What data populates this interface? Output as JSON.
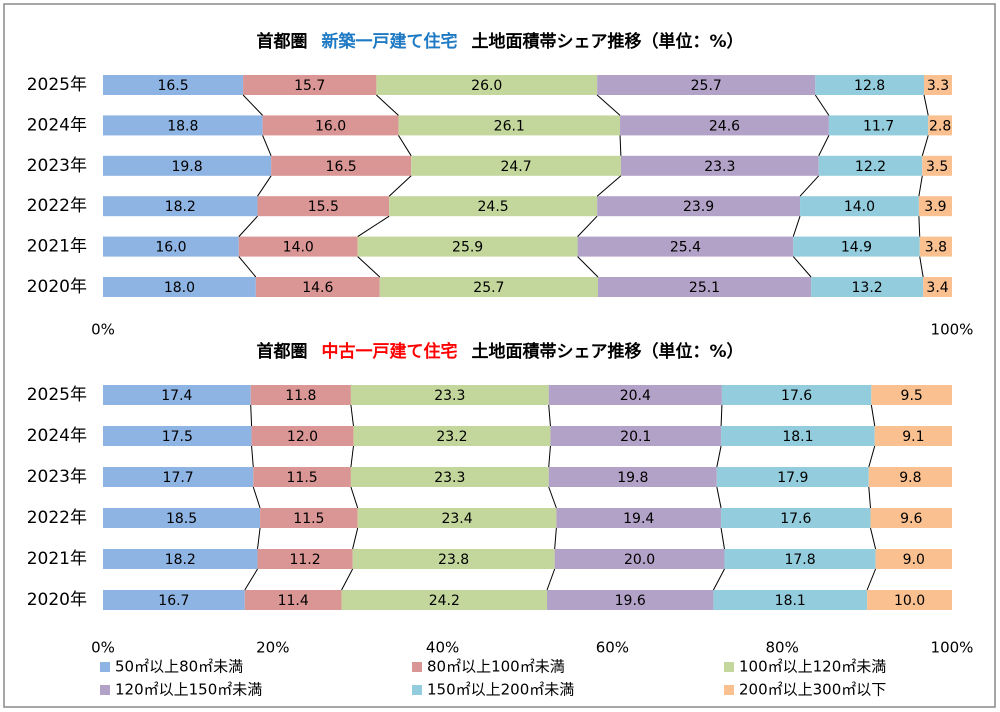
{
  "chart_data": [
    {
      "type": "stacked-bar-horizontal-percent",
      "title": [
        "首都圏",
        "新築一戸建て住宅",
        "土地面積帯シェア推移（単位：%）"
      ],
      "title_colors": [
        "#000000",
        "#1f7ac4",
        "#000000"
      ],
      "categories": [
        "2025年",
        "2024年",
        "2023年",
        "2022年",
        "2021年",
        "2020年"
      ],
      "xlim": [
        0,
        100
      ],
      "xticks": [
        {
          "value": 0,
          "label": "0%"
        },
        {
          "value": 100,
          "label": "100%"
        }
      ],
      "legend": false,
      "series": [
        {
          "color": "#8eb4e3",
          "values": [
            16.5,
            18.8,
            19.8,
            18.2,
            16.0,
            18.0
          ],
          "value_labels": [
            "16.5",
            "18.8",
            "19.8",
            "18.2",
            "16.0",
            "18.0"
          ]
        },
        {
          "color": "#da9694",
          "values": [
            15.7,
            16.0,
            16.5,
            15.5,
            14.0,
            14.6
          ],
          "value_labels": [
            "15.7",
            "16.0",
            "16.5",
            "15.5",
            "14.0",
            "14.6"
          ]
        },
        {
          "color": "#c3d69b",
          "values": [
            26.0,
            26.1,
            24.7,
            24.5,
            25.9,
            25.7
          ],
          "value_labels": [
            "26.0",
            "26.1",
            "24.7",
            "24.5",
            "25.9",
            "25.7"
          ]
        },
        {
          "color": "#b3a2c7",
          "values": [
            25.7,
            24.6,
            23.3,
            23.9,
            25.4,
            25.1
          ],
          "value_labels": [
            "25.7",
            "24.6",
            "23.3",
            "23.9",
            "25.4",
            "25.1"
          ]
        },
        {
          "color": "#93cddd",
          "values": [
            12.8,
            11.7,
            12.2,
            14.0,
            14.9,
            13.2
          ],
          "value_labels": [
            "12.8",
            "11.7",
            "12.2",
            "14.0",
            "14.9",
            "13.2"
          ]
        },
        {
          "color": "#fac090",
          "values": [
            3.3,
            2.8,
            3.5,
            3.9,
            3.8,
            3.4
          ],
          "value_labels": [
            "3.3",
            "2.8",
            "3.5",
            "3.9",
            "3.8",
            "3.4"
          ]
        }
      ]
    },
    {
      "type": "stacked-bar-horizontal-percent",
      "title": [
        "首都圏",
        "中古一戸建て住宅",
        "土地面積帯シェア推移（単位：%）"
      ],
      "title_colors": [
        "#000000",
        "#ff0000",
        "#000000"
      ],
      "categories": [
        "2025年",
        "2024年",
        "2023年",
        "2022年",
        "2021年",
        "2020年"
      ],
      "xlim": [
        0,
        100
      ],
      "xticks": [
        {
          "value": 0,
          "label": "0%"
        },
        {
          "value": 20,
          "label": "20%"
        },
        {
          "value": 40,
          "label": "40%"
        },
        {
          "value": 60,
          "label": "60%"
        },
        {
          "value": 80,
          "label": "80%"
        },
        {
          "value": 100,
          "label": "100%"
        }
      ],
      "legend": true,
      "series": [
        {
          "name": "50㎡以上80㎡未満",
          "color": "#8eb4e3",
          "values": [
            17.4,
            17.5,
            17.7,
            18.5,
            18.2,
            16.7
          ],
          "value_labels": [
            "17.4",
            "17.5",
            "17.7",
            "18.5",
            "18.2",
            "16.7"
          ]
        },
        {
          "name": "80㎡以上100㎡未満",
          "color": "#da9694",
          "values": [
            11.8,
            12.0,
            11.5,
            11.5,
            11.2,
            11.4
          ],
          "value_labels": [
            "11.8",
            "12.0",
            "11.5",
            "11.5",
            "11.2",
            "11.4"
          ]
        },
        {
          "name": "100㎡以上120㎡未満",
          "color": "#c3d69b",
          "values": [
            23.3,
            23.2,
            23.3,
            23.4,
            23.8,
            24.2
          ],
          "value_labels": [
            "23.3",
            "23.2",
            "23.3",
            "23.4",
            "23.8",
            "24.2"
          ]
        },
        {
          "name": "120㎡以上150㎡未満",
          "color": "#b3a2c7",
          "values": [
            20.4,
            20.1,
            19.8,
            19.4,
            20.0,
            19.6
          ],
          "value_labels": [
            "20.4",
            "20.1",
            "19.8",
            "19.4",
            "20.0",
            "19.6"
          ]
        },
        {
          "name": "150㎡以上200㎡未満",
          "color": "#93cddd",
          "values": [
            17.6,
            18.1,
            17.9,
            17.6,
            17.8,
            18.1
          ],
          "value_labels": [
            "17.6",
            "18.1",
            "17.9",
            "17.6",
            "17.8",
            "18.1"
          ]
        },
        {
          "name": "200㎡以上300㎡以下",
          "color": "#fac090",
          "values": [
            9.5,
            9.1,
            9.8,
            9.6,
            9.0,
            10.0
          ],
          "value_labels": [
            "9.5",
            "9.1",
            "9.8",
            "9.6",
            "9.0",
            "10.0"
          ]
        }
      ]
    }
  ]
}
